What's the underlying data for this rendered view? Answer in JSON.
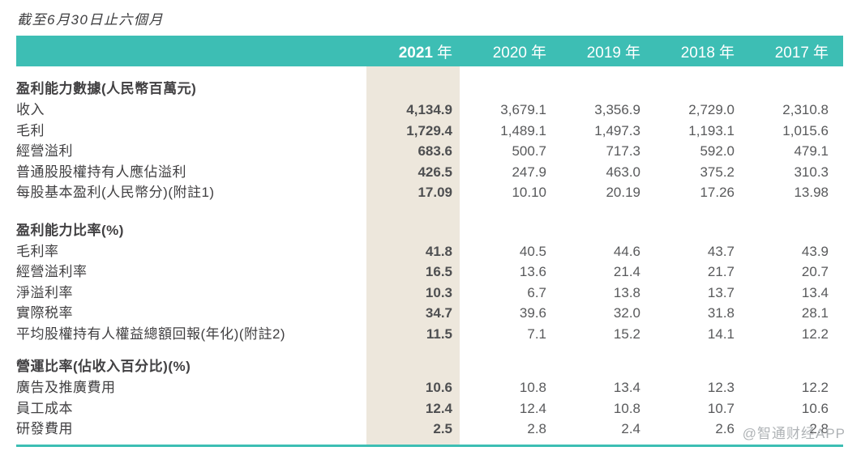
{
  "title": "截至6月30日止六個月",
  "watermark": "@智通财经APP",
  "colors": {
    "header_teal": "#3dbeb4",
    "highlight_beige": "#ede7dc",
    "label_text": "#414042",
    "number_text": "#58595b"
  },
  "header": {
    "columns": [
      {
        "year": "2021",
        "suffix": "年"
      },
      {
        "year": "2020",
        "suffix": "年"
      },
      {
        "year": "2019",
        "suffix": "年"
      },
      {
        "year": "2018",
        "suffix": "年"
      },
      {
        "year": "2017",
        "suffix": "年"
      }
    ]
  },
  "sections": [
    {
      "heading": "盈利能力數據(人民幣百萬元)",
      "rows": [
        {
          "label": "收入",
          "values": [
            "4,134.9",
            "3,679.1",
            "3,356.9",
            "2,729.0",
            "2,310.8"
          ]
        },
        {
          "label": "毛利",
          "values": [
            "1,729.4",
            "1,489.1",
            "1,497.3",
            "1,193.1",
            "1,015.6"
          ]
        },
        {
          "label": "經營溢利",
          "values": [
            "683.6",
            "500.7",
            "717.3",
            "592.0",
            "479.1"
          ]
        },
        {
          "label": "普通股股權持有人應佔溢利",
          "values": [
            "426.5",
            "247.9",
            "463.0",
            "375.2",
            "310.3"
          ]
        },
        {
          "label": "每股基本盈利(人民幣分)(附註1)",
          "values": [
            "17.09",
            "10.10",
            "20.19",
            "17.26",
            "13.98"
          ]
        }
      ]
    },
    {
      "heading": "盈利能力比率(%)",
      "rows": [
        {
          "label": "毛利率",
          "values": [
            "41.8",
            "40.5",
            "44.6",
            "43.7",
            "43.9"
          ]
        },
        {
          "label": "經營溢利率",
          "values": [
            "16.5",
            "13.6",
            "21.4",
            "21.7",
            "20.7"
          ]
        },
        {
          "label": "淨溢利率",
          "values": [
            "10.3",
            "6.7",
            "13.8",
            "13.7",
            "13.4"
          ]
        },
        {
          "label": "實際税率",
          "values": [
            "34.7",
            "39.6",
            "32.0",
            "31.8",
            "28.1"
          ]
        },
        {
          "label": "平均股權持有人權益總額回報(年化)(附註2)",
          "values": [
            "11.5",
            "7.1",
            "15.2",
            "14.1",
            "12.2"
          ]
        }
      ]
    },
    {
      "heading": "營運比率(佔收入百分比)(%)",
      "rows": [
        {
          "label": "廣告及推廣費用",
          "values": [
            "10.6",
            "10.8",
            "13.4",
            "12.3",
            "12.2"
          ]
        },
        {
          "label": "員工成本",
          "values": [
            "12.4",
            "12.4",
            "10.8",
            "10.7",
            "10.6"
          ]
        },
        {
          "label": "研發費用",
          "values": [
            "2.5",
            "2.8",
            "2.4",
            "2.6",
            "2.8"
          ]
        }
      ]
    }
  ]
}
